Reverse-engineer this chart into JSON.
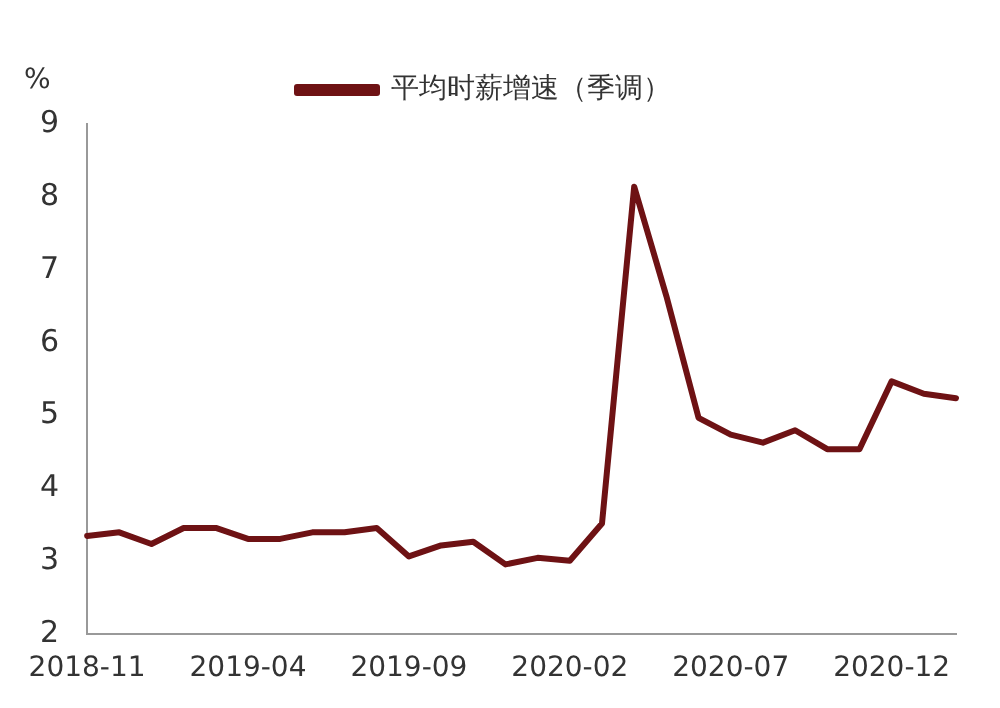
{
  "chart_data": {
    "type": "line",
    "ylabel": "%",
    "categories": [
      "2018-11",
      null,
      null,
      null,
      null,
      "2019-04",
      null,
      null,
      null,
      null,
      "2019-09",
      null,
      null,
      null,
      null,
      "2020-02",
      null,
      null,
      null,
      null,
      "2020-07",
      null,
      null,
      null,
      null,
      "2020-12",
      null,
      null
    ],
    "series": [
      {
        "name": "平均时薪增速（季调）",
        "color": "#6e1214",
        "values": [
          3.35,
          3.4,
          3.24,
          3.46,
          3.46,
          3.31,
          3.31,
          3.4,
          3.4,
          3.46,
          3.07,
          3.22,
          3.27,
          2.96,
          3.05,
          3.01,
          3.52,
          8.14,
          6.64,
          4.97,
          4.74,
          4.63,
          4.8,
          4.54,
          4.54,
          5.47,
          5.3,
          5.24
        ]
      }
    ],
    "ylim": [
      2,
      9
    ],
    "yticks": [
      2,
      3,
      4,
      5,
      6,
      7,
      8,
      9
    ],
    "grid": false,
    "legend": "top",
    "marker": "none",
    "line_style": "solid"
  }
}
